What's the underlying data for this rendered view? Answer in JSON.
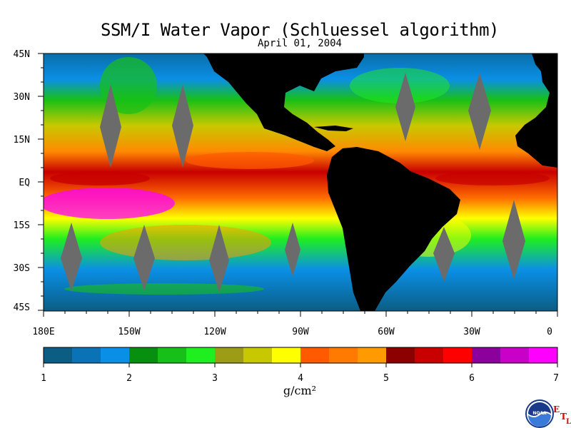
{
  "title": "SSM/I Water Vapor (Schluessel algorithm)",
  "subtitle": "April 01, 2004",
  "latitude_labels": [
    "45N",
    "30N",
    "15N",
    "EQ",
    "15S",
    "30S",
    "45S"
  ],
  "longitude_labels": [
    "180E",
    "150W",
    "120W",
    "90W",
    "60W",
    "30W",
    "0"
  ],
  "colorbar": {
    "ticks": [
      "1",
      "2",
      "3",
      "4",
      "5",
      "6",
      "7"
    ],
    "units": "g/cm²",
    "colors": [
      "#0b5d83",
      "#0a73b5",
      "#0a8fe6",
      "#078f10",
      "#17c017",
      "#1fee1f",
      "#9c9c16",
      "#c8c800",
      "#ffff00",
      "#ff5a00",
      "#ff7a00",
      "#ff9a00",
      "#8c0000",
      "#c80000",
      "#ff0000",
      "#8c009c",
      "#c800c8",
      "#ff00ff"
    ]
  },
  "logo": {
    "name": "NOAA",
    "side_letters": [
      "E",
      "T",
      "L"
    ]
  },
  "colors": {
    "land": "#000000",
    "no_data_swath": "#6b6b6b"
  }
}
